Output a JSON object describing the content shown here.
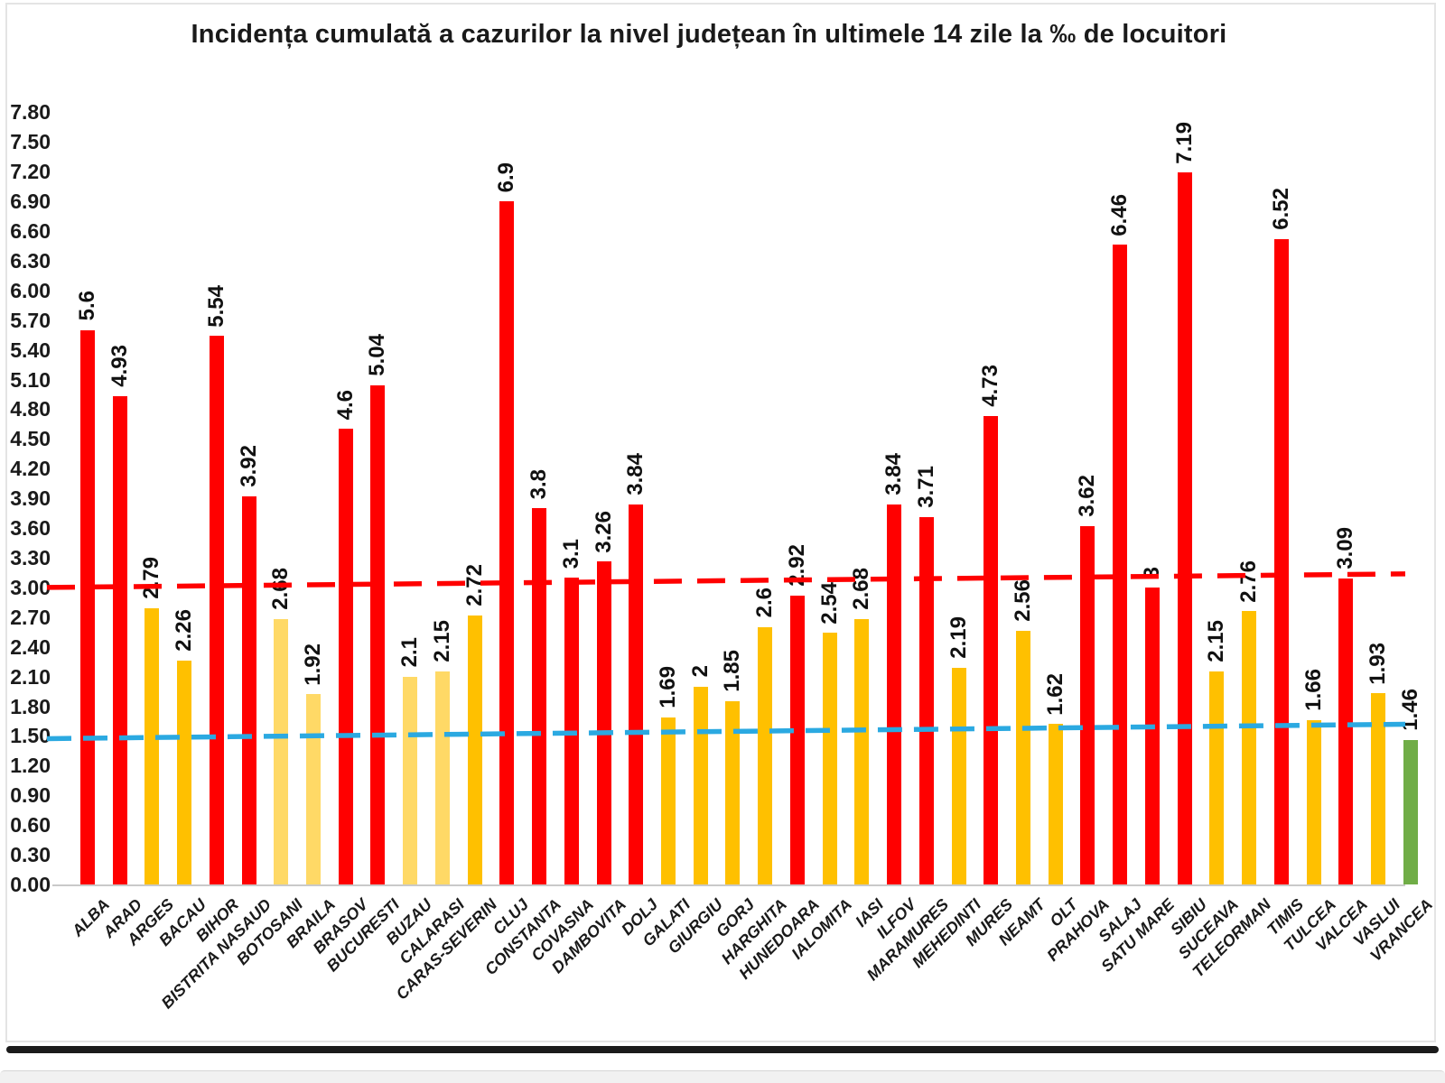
{
  "page": {
    "title": "Incidența cumulată a cazurilor la nivel județean în ultimele 14 zile la ‰ de locuitori"
  },
  "chart_data": {
    "type": "bar",
    "title": "Incidența cumulată a cazurilor la nivel județean în ultimele 14 zile la ‰ de locuitori",
    "xlabel": "",
    "ylabel": "",
    "ylim": [
      0,
      7.8
    ],
    "ytick_step": 0.3,
    "grid": false,
    "legend": "none",
    "yticks": [
      "0.00",
      "0.30",
      "0.60",
      "0.90",
      "1.20",
      "1.50",
      "1.80",
      "2.10",
      "2.40",
      "2.70",
      "3.00",
      "3.30",
      "3.60",
      "3.90",
      "4.20",
      "4.50",
      "4.80",
      "5.10",
      "5.40",
      "5.70",
      "6.00",
      "6.30",
      "6.60",
      "6.90",
      "7.20",
      "7.50",
      "7.80"
    ],
    "colors": {
      "red": "#FF0000",
      "gold": "#FFC000",
      "light_gold": "#FFD966",
      "green": "#70AD47"
    },
    "thresholds": [
      {
        "name": "upper-threshold",
        "value": 3.0,
        "color": "#FF0000",
        "style": "dashed"
      },
      {
        "name": "lower-threshold",
        "value": 1.5,
        "color": "#2BA9E1",
        "style": "dashed"
      }
    ],
    "bars": [
      {
        "county": "ALBA",
        "value": 5.6,
        "label": "5.6",
        "color": "red"
      },
      {
        "county": "ARAD",
        "value": 4.93,
        "label": "4.93",
        "color": "red"
      },
      {
        "county": "ARGES",
        "value": 2.79,
        "label": "2.79",
        "color": "gold"
      },
      {
        "county": "BACAU",
        "value": 2.26,
        "label": "2.26",
        "color": "gold"
      },
      {
        "county": "BIHOR",
        "value": 5.54,
        "label": "5.54",
        "color": "red"
      },
      {
        "county": "BISTRITA NASAUD",
        "value": 3.92,
        "label": "3.92",
        "color": "red"
      },
      {
        "county": "BOTOSANI",
        "value": 2.68,
        "label": "2.68",
        "color": "light_gold"
      },
      {
        "county": "BRAILA",
        "value": 1.92,
        "label": "1.92",
        "color": "light_gold"
      },
      {
        "county": "BRASOV",
        "value": 4.6,
        "label": "4.6",
        "color": "red"
      },
      {
        "county": "BUCURESTI",
        "value": 5.04,
        "label": "5.04",
        "color": "red"
      },
      {
        "county": "BUZAU",
        "value": 2.1,
        "label": "2.1",
        "color": "light_gold"
      },
      {
        "county": "CALARASI",
        "value": 2.15,
        "label": "2.15",
        "color": "light_gold"
      },
      {
        "county": "CARAS-SEVERIN",
        "value": 2.72,
        "label": "2.72",
        "color": "gold"
      },
      {
        "county": "CLUJ",
        "value": 6.9,
        "label": "6.9",
        "color": "red"
      },
      {
        "county": "CONSTANTA",
        "value": 3.8,
        "label": "3.8",
        "color": "red"
      },
      {
        "county": "COVASNA",
        "value": 3.1,
        "label": "3.1",
        "color": "red"
      },
      {
        "county": "DAMBOVITA",
        "value": 3.26,
        "label": "3.26",
        "color": "red"
      },
      {
        "county": "DOLJ",
        "value": 3.84,
        "label": "3.84",
        "color": "red"
      },
      {
        "county": "GALATI",
        "value": 1.69,
        "label": "1.69",
        "color": "gold"
      },
      {
        "county": "GIURGIU",
        "value": 2,
        "label": "2",
        "color": "gold"
      },
      {
        "county": "GORJ",
        "value": 1.85,
        "label": "1.85",
        "color": "gold"
      },
      {
        "county": "HARGHITA",
        "value": 2.6,
        "label": "2.6",
        "color": "gold"
      },
      {
        "county": "HUNEDOARA",
        "value": 2.92,
        "label": "2.92",
        "color": "red"
      },
      {
        "county": "IALOMITA",
        "value": 2.54,
        "label": "2.54",
        "color": "gold"
      },
      {
        "county": "IASI",
        "value": 2.68,
        "label": "2.68",
        "color": "gold"
      },
      {
        "county": "ILFOV",
        "value": 3.84,
        "label": "3.84",
        "color": "red"
      },
      {
        "county": "MARAMURES",
        "value": 3.71,
        "label": "3.71",
        "color": "red"
      },
      {
        "county": "MEHEDINTI",
        "value": 2.19,
        "label": "2.19",
        "color": "gold"
      },
      {
        "county": "MURES",
        "value": 4.73,
        "label": "4.73",
        "color": "red"
      },
      {
        "county": "NEAMT",
        "value": 2.56,
        "label": "2.56",
        "color": "gold"
      },
      {
        "county": "OLT",
        "value": 1.62,
        "label": "1.62",
        "color": "gold"
      },
      {
        "county": "PRAHOVA",
        "value": 3.62,
        "label": "3.62",
        "color": "red"
      },
      {
        "county": "SALAJ",
        "value": 6.46,
        "label": "6.46",
        "color": "red"
      },
      {
        "county": "SATU MARE",
        "value": 3,
        "label": "3",
        "color": "red"
      },
      {
        "county": "SIBIU",
        "value": 7.19,
        "label": "7.19",
        "color": "red"
      },
      {
        "county": "SUCEAVA",
        "value": 2.15,
        "label": "2.15",
        "color": "gold"
      },
      {
        "county": "TELEORMAN",
        "value": 2.76,
        "label": "2.76",
        "color": "gold"
      },
      {
        "county": "TIMIS",
        "value": 6.52,
        "label": "6.52",
        "color": "red"
      },
      {
        "county": "TULCEA",
        "value": 1.66,
        "label": "1.66",
        "color": "gold"
      },
      {
        "county": "VALCEA",
        "value": 3.09,
        "label": "3.09",
        "color": "red"
      },
      {
        "county": "VASLUI",
        "value": 1.93,
        "label": "1.93",
        "color": "gold"
      },
      {
        "county": "VRANCEA",
        "value": 1.46,
        "label": "1.46",
        "color": "green"
      }
    ]
  }
}
